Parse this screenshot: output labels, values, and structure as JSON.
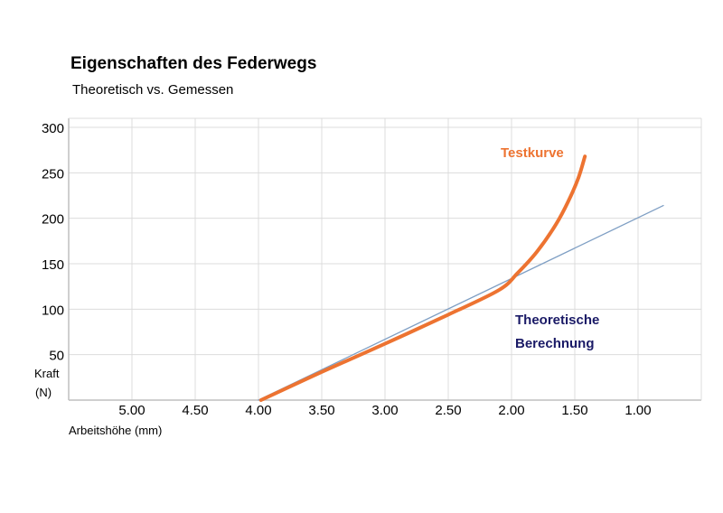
{
  "chart_data": {
    "type": "line",
    "title": "Eigenschaften des Federwegs",
    "subtitle": "Theoretisch vs. Gemessen",
    "xlabel": "Arbeitshöhe (mm)",
    "ylabel_line1": "Kraft",
    "ylabel_line2": "(N)",
    "x_reversed": true,
    "xlim": [
      5.5,
      0.5
    ],
    "ylim": [
      0,
      300
    ],
    "grid": true,
    "x_ticks": [
      "5.00",
      "4.50",
      "4.00",
      "3.50",
      "3.00",
      "2.50",
      "2.00",
      "1.50",
      "1.00"
    ],
    "y_ticks": [
      "300",
      "250",
      "200",
      "150",
      "100",
      "50"
    ],
    "series": [
      {
        "name": "Theoretische Berechnung",
        "color": "#7f9fc4",
        "x": [
          4.0,
          0.8
        ],
        "y": [
          0,
          214
        ]
      },
      {
        "name": "Testkurve",
        "color": "#ed7331",
        "x": [
          3.98,
          3.5,
          3.0,
          2.5,
          2.1,
          1.95,
          1.8,
          1.65,
          1.55,
          1.47,
          1.42
        ],
        "y": [
          0,
          31,
          62,
          94,
          121,
          140,
          163,
          193,
          219,
          245,
          268
        ]
      }
    ],
    "annotations": [
      {
        "text": "Testkurve",
        "color": "#ed7331"
      },
      {
        "text": "Theoretische",
        "color": "#1a1a66"
      },
      {
        "text": "Berechnung",
        "color": "#1a1a66"
      }
    ]
  }
}
